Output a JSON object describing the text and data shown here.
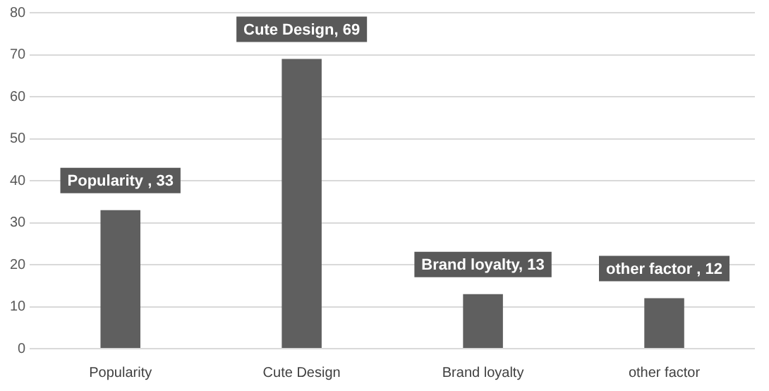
{
  "chart_data": {
    "type": "bar",
    "categories": [
      "Popularity",
      "Cute Design",
      "Brand loyalty",
      "other factor"
    ],
    "values": [
      33,
      69,
      13,
      12
    ],
    "color": "#5f5f5f",
    "value_labels": [
      "Popularity , 33",
      "Cute Design, 69",
      "Brand loyalty, 13",
      "other factor , 12"
    ],
    "ylim": [
      0,
      80
    ],
    "yticks": [
      0,
      10,
      20,
      30,
      40,
      50,
      60,
      70,
      80
    ],
    "grid": "y",
    "legend": false
  }
}
